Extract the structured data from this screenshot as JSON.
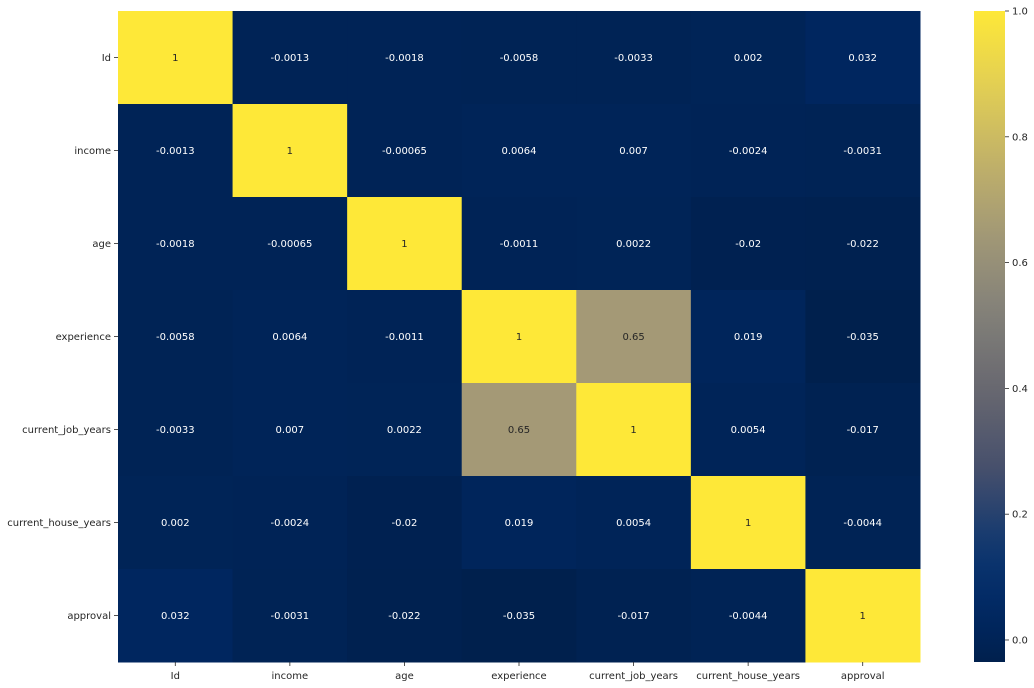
{
  "chart_data": {
    "type": "heatmap",
    "title": "",
    "xlabel": "",
    "ylabel": "",
    "x_labels": [
      "Id",
      "income",
      "age",
      "experience",
      "current_job_years",
      "current_house_years",
      "approval"
    ],
    "y_labels": [
      "Id",
      "income",
      "age",
      "experience",
      "current_job_years",
      "current_house_years",
      "approval"
    ],
    "values": [
      [
        1,
        -0.0013,
        -0.0018,
        -0.0058,
        -0.0033,
        0.002,
        0.032
      ],
      [
        -0.0013,
        1,
        -0.00065,
        0.0064,
        0.007,
        -0.0024,
        -0.0031
      ],
      [
        -0.0018,
        -0.00065,
        1,
        -0.0011,
        0.0022,
        -0.02,
        -0.022
      ],
      [
        -0.0058,
        0.0064,
        -0.0011,
        1,
        0.65,
        0.019,
        -0.035
      ],
      [
        -0.0033,
        0.007,
        0.0022,
        0.65,
        1,
        0.0054,
        -0.017
      ],
      [
        0.002,
        -0.0024,
        -0.02,
        0.019,
        0.0054,
        1,
        -0.0044
      ],
      [
        0.032,
        -0.0031,
        -0.022,
        -0.035,
        -0.017,
        -0.0044,
        1
      ]
    ],
    "annotations": [
      [
        "1",
        "-0.0013",
        "-0.0018",
        "-0.0058",
        "-0.0033",
        "0.002",
        "0.032"
      ],
      [
        "-0.0013",
        "1",
        "-0.00065",
        "0.0064",
        "0.007",
        "-0.0024",
        "-0.0031"
      ],
      [
        "-0.0018",
        "-0.00065",
        "1",
        "-0.0011",
        "0.0022",
        "-0.02",
        "-0.022"
      ],
      [
        "-0.0058",
        "0.0064",
        "-0.0011",
        "1",
        "0.65",
        "0.019",
        "-0.035"
      ],
      [
        "-0.0033",
        "0.007",
        "0.0022",
        "0.65",
        "1",
        "0.0054",
        "-0.017"
      ],
      [
        "0.002",
        "-0.0024",
        "-0.02",
        "0.019",
        "0.0054",
        "1",
        "-0.0044"
      ],
      [
        "0.032",
        "-0.0031",
        "-0.022",
        "-0.035",
        "-0.017",
        "-0.0044",
        "1"
      ]
    ],
    "colormap": "cividis",
    "colorbar": {
      "range": [
        -0.035,
        1.0
      ],
      "ticks": [
        0.0,
        0.2,
        0.4,
        0.6,
        0.8,
        1.0
      ],
      "tick_labels": [
        "0.0",
        "0.2",
        "0.4",
        "0.6",
        "0.8",
        "1.0"
      ]
    },
    "grid": false,
    "legend": "colorbar-right"
  }
}
